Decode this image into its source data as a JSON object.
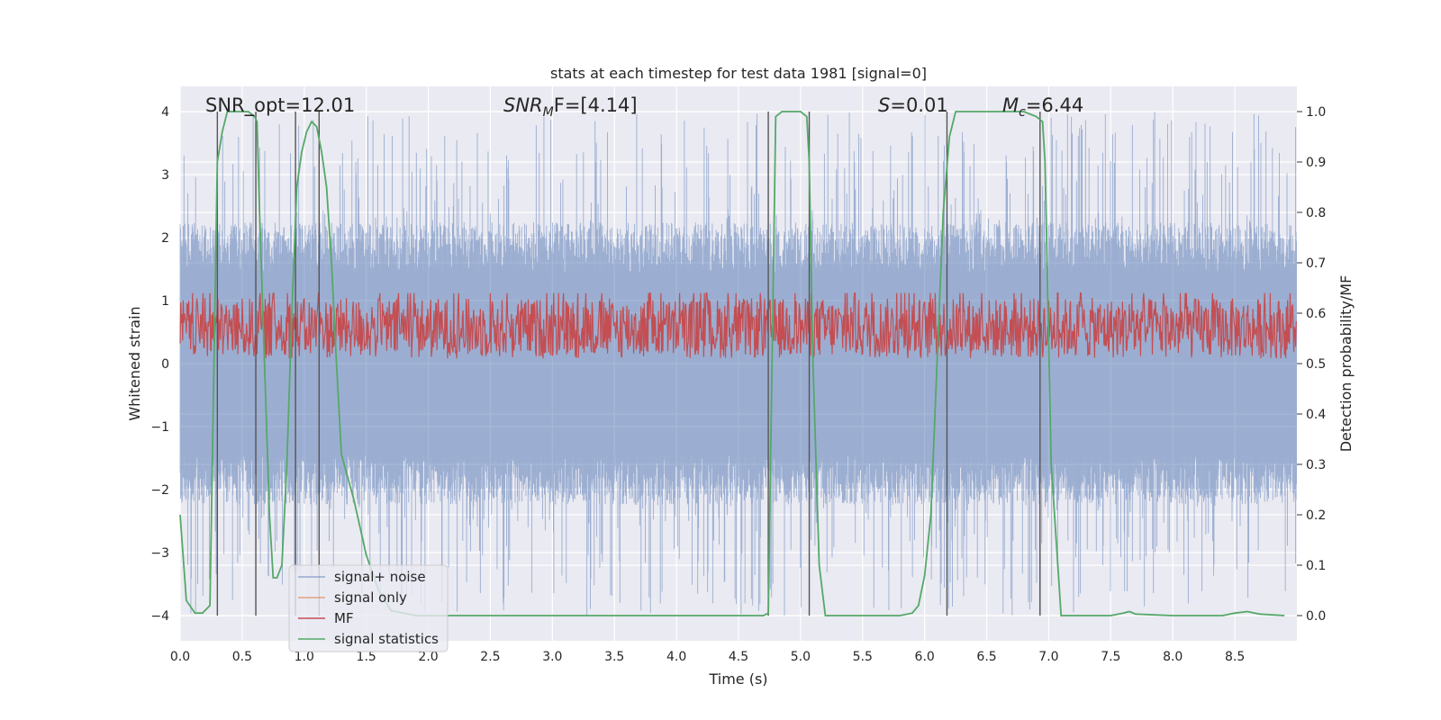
{
  "chart_data": {
    "type": "line",
    "title": "stats at each timestep for test data 1981 [signal=0]",
    "xlabel": "Time (s)",
    "ylabel": "Whitened strain",
    "y2label": "Detection probability/MF",
    "xlim": [
      0,
      9.0
    ],
    "ylim": [
      -4.4,
      4.4
    ],
    "y2lim": [
      -0.05,
      1.05
    ],
    "grid": true,
    "background": "#eaeaf2",
    "xticks": [
      "0.0",
      "0.5",
      "1.0",
      "1.5",
      "2.0",
      "2.5",
      "3.0",
      "3.5",
      "4.0",
      "4.5",
      "5.0",
      "5.5",
      "6.0",
      "6.5",
      "7.0",
      "7.5",
      "8.0",
      "8.5"
    ],
    "yticks": [
      "4",
      "3",
      "2",
      "1",
      "0",
      "−1",
      "−2",
      "−3",
      "−4"
    ],
    "y2ticks": [
      "1.0",
      "0.9",
      "0.8",
      "0.7",
      "0.6",
      "0.5",
      "0.4",
      "0.3",
      "0.2",
      "0.1",
      "0.0"
    ],
    "annotations": {
      "snr_opt": "SNR_opt=12.01",
      "snr_mf_sym": "SNR",
      "snr_mf_sub": "M",
      "snr_mf_rest": "F=[4.14]",
      "s_sym": "S",
      "s_rest": "=0.01",
      "mc_sym": "M",
      "mc_sub": "c",
      "mc_rest": "=6.44"
    },
    "series": [
      {
        "name": "signal+ noise",
        "color": "#4c72b0",
        "axis": "left",
        "description": "whitened strain noise, roughly within ±2.5 with spikes to ±4",
        "amplitude_typical": 1.6,
        "amplitude_max": 4.0
      },
      {
        "name": "signal only",
        "color": "#dd8452",
        "axis": "left",
        "values": []
      },
      {
        "name": "MF",
        "color": "#c44e52",
        "axis": "right",
        "description": "matched filter output between 0.5 and ~0.64",
        "range": [
          0.5,
          0.64
        ]
      },
      {
        "name": "signal statistics",
        "color": "#55a868",
        "axis": "right",
        "x": [
          0,
          0.05,
          0.12,
          0.18,
          0.24,
          0.3,
          0.34,
          0.38,
          0.42,
          0.46,
          0.5,
          0.55,
          0.6,
          0.62,
          0.64,
          0.68,
          0.72,
          0.75,
          0.78,
          0.82,
          0.86,
          0.9,
          0.94,
          0.98,
          1.02,
          1.06,
          1.1,
          1.14,
          1.18,
          1.22,
          1.26,
          1.3,
          1.4,
          1.5,
          1.6,
          1.7,
          1.8,
          1.9,
          2.0,
          3.0,
          4.0,
          4.7,
          4.74,
          4.77,
          4.8,
          4.85,
          4.9,
          5.0,
          5.05,
          5.07,
          5.1,
          5.15,
          5.2,
          5.5,
          5.8,
          5.9,
          5.95,
          6.0,
          6.05,
          6.1,
          6.15,
          6.2,
          6.25,
          6.3,
          6.5,
          6.8,
          6.9,
          6.95,
          6.97,
          7.02,
          7.1,
          7.5,
          7.6,
          7.65,
          7.7,
          8.0,
          8.4,
          8.5,
          8.6,
          8.7,
          8.9
        ],
        "y": [
          0.2,
          0.03,
          0.005,
          0.005,
          0.02,
          0.9,
          0.96,
          1.0,
          1.0,
          1.0,
          1.0,
          1.0,
          0.99,
          0.98,
          0.8,
          0.5,
          0.2,
          0.075,
          0.075,
          0.1,
          0.3,
          0.6,
          0.85,
          0.92,
          0.96,
          0.98,
          0.97,
          0.92,
          0.85,
          0.7,
          0.5,
          0.32,
          0.23,
          0.12,
          0.05,
          0.01,
          0.005,
          0.0,
          0.0,
          0.0,
          0.0,
          0.0,
          0.005,
          0.5,
          0.99,
          1.0,
          1.0,
          1.0,
          0.99,
          0.9,
          0.5,
          0.1,
          0.0,
          0.0,
          0.0,
          0.005,
          0.02,
          0.08,
          0.2,
          0.5,
          0.8,
          0.95,
          1.0,
          1.0,
          1.0,
          1.0,
          0.99,
          0.98,
          0.9,
          0.3,
          0.0,
          0.0,
          0.005,
          0.008,
          0.003,
          0.0,
          0.0,
          0.005,
          0.008,
          0.003,
          0.0
        ]
      }
    ],
    "vlines_x": [
      0.3,
      0.61,
      0.93,
      1.12,
      4.74,
      5.07,
      6.18,
      6.93
    ],
    "legend": {
      "placement": "lower-left"
    }
  }
}
